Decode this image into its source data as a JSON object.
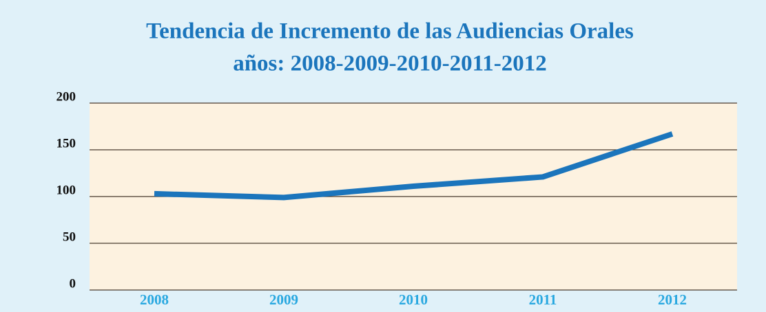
{
  "chart_data": {
    "type": "line",
    "title": [
      "Tendencia de Incremento de las Audiencias Orales",
      "años: 2008-2009-2010-2011-2012"
    ],
    "categories": [
      "2008",
      "2009",
      "2010",
      "2011",
      "2012"
    ],
    "values": [
      103,
      99,
      111,
      121,
      167
    ],
    "color": "#1b75bc",
    "ylim": [
      0,
      200
    ],
    "yticks": [
      0,
      50,
      100,
      150,
      200
    ],
    "grid": true
  }
}
